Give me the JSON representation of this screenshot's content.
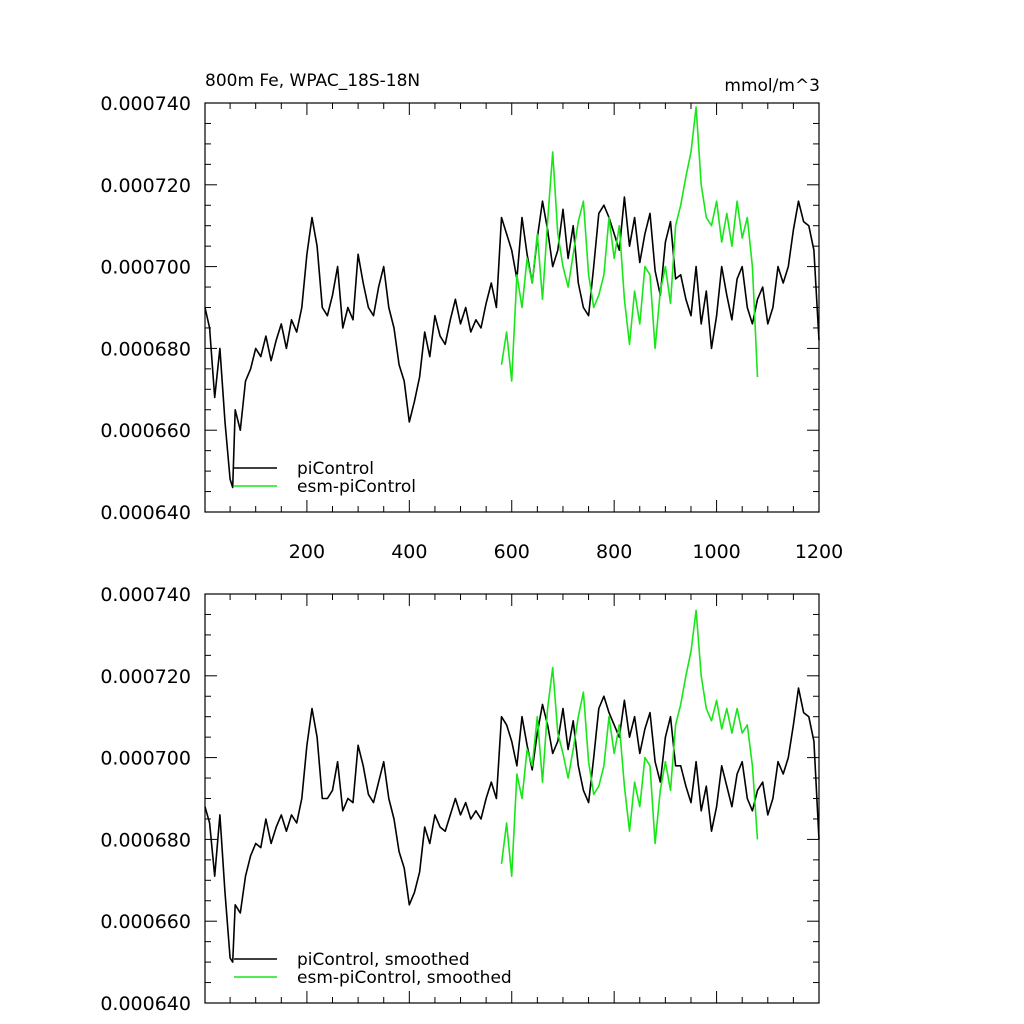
{
  "colors": {
    "piControl": "#000000",
    "esm_piControl": "#19e619",
    "frame": "#000000"
  },
  "chart_data": [
    {
      "type": "line",
      "title": "800m Fe, WPAC_18S-18N",
      "units": "mmol/m^3",
      "xlim": [
        1,
        1200
      ],
      "ylim": [
        0.00064,
        0.00074
      ],
      "yticks": [
        "0.000640",
        "0.000660",
        "0.000680",
        "0.000700",
        "0.000720",
        "0.000740"
      ],
      "xticks": [
        "200",
        "400",
        "600",
        "800",
        "1000",
        "1200"
      ],
      "legend": [
        "piControl",
        "esm-piControl"
      ],
      "legend_position": "bottom-left",
      "series": [
        {
          "name": "piControl",
          "color": "#000000",
          "x": [
            1,
            10,
            20,
            30,
            40,
            50,
            55,
            60,
            70,
            80,
            90,
            100,
            110,
            120,
            130,
            140,
            150,
            160,
            170,
            180,
            190,
            200,
            210,
            220,
            230,
            240,
            250,
            260,
            270,
            280,
            290,
            300,
            310,
            320,
            330,
            340,
            350,
            360,
            370,
            380,
            390,
            400,
            410,
            420,
            430,
            440,
            450,
            460,
            470,
            480,
            490,
            500,
            510,
            520,
            530,
            540,
            550,
            560,
            570,
            580,
            590,
            600,
            610,
            620,
            630,
            640,
            650,
            660,
            670,
            680,
            690,
            700,
            710,
            720,
            730,
            740,
            750,
            760,
            770,
            780,
            790,
            800,
            810,
            820,
            830,
            840,
            850,
            860,
            870,
            880,
            890,
            900,
            910,
            920,
            930,
            940,
            950,
            960,
            970,
            980,
            990,
            1000,
            1010,
            1020,
            1030,
            1040,
            1050,
            1060,
            1070,
            1080,
            1090,
            1100,
            1110,
            1120,
            1130,
            1140,
            1150,
            1160,
            1170,
            1180,
            1190,
            1200
          ],
          "y": [
            0.00069,
            0.000685,
            0.000668,
            0.00068,
            0.000662,
            0.000648,
            0.000646,
            0.000665,
            0.00066,
            0.000672,
            0.000675,
            0.00068,
            0.000678,
            0.000683,
            0.000677,
            0.000682,
            0.000686,
            0.00068,
            0.000687,
            0.000684,
            0.00069,
            0.000703,
            0.000712,
            0.000705,
            0.00069,
            0.000688,
            0.000693,
            0.0007,
            0.000685,
            0.00069,
            0.000687,
            0.000703,
            0.000696,
            0.00069,
            0.000688,
            0.000695,
            0.0007,
            0.00069,
            0.000685,
            0.000676,
            0.000672,
            0.000662,
            0.000667,
            0.000673,
            0.000684,
            0.000678,
            0.000688,
            0.000683,
            0.000681,
            0.000687,
            0.000692,
            0.000686,
            0.00069,
            0.000684,
            0.000687,
            0.000685,
            0.000691,
            0.000696,
            0.00069,
            0.000712,
            0.000708,
            0.000704,
            0.000697,
            0.000712,
            0.000703,
            0.000696,
            0.000707,
            0.000716,
            0.000709,
            0.0007,
            0.000704,
            0.000714,
            0.000702,
            0.00071,
            0.000696,
            0.00069,
            0.000688,
            0.0007,
            0.000713,
            0.000715,
            0.000712,
            0.000708,
            0.000704,
            0.000717,
            0.000705,
            0.000712,
            0.000701,
            0.000708,
            0.000713,
            0.000699,
            0.000693,
            0.000706,
            0.000711,
            0.000697,
            0.000698,
            0.000692,
            0.000688,
            0.0007,
            0.000686,
            0.000694,
            0.00068,
            0.000688,
            0.0007,
            0.000693,
            0.000687,
            0.000697,
            0.0007,
            0.00069,
            0.000686,
            0.000692,
            0.000695,
            0.000686,
            0.00069,
            0.0007,
            0.000696,
            0.0007,
            0.000709,
            0.000716,
            0.000711,
            0.00071,
            0.000704,
            0.000682
          ]
        },
        {
          "name": "esm-piControl",
          "color": "#19e619",
          "x": [
            580,
            590,
            600,
            610,
            620,
            630,
            640,
            650,
            660,
            670,
            680,
            690,
            700,
            710,
            720,
            730,
            740,
            750,
            760,
            770,
            780,
            790,
            800,
            810,
            820,
            830,
            840,
            850,
            860,
            870,
            880,
            890,
            900,
            910,
            920,
            930,
            940,
            950,
            960,
            970,
            980,
            990,
            1000,
            1010,
            1020,
            1030,
            1040,
            1050,
            1060,
            1070,
            1080
          ],
          "y": [
            0.000676,
            0.000684,
            0.000672,
            0.000698,
            0.00069,
            0.000702,
            0.000696,
            0.000708,
            0.000692,
            0.000711,
            0.000728,
            0.000708,
            0.0007,
            0.000695,
            0.000703,
            0.000711,
            0.000716,
            0.000698,
            0.00069,
            0.000693,
            0.000698,
            0.000712,
            0.000702,
            0.00071,
            0.000692,
            0.000681,
            0.000694,
            0.000686,
            0.0007,
            0.000698,
            0.00068,
            0.000694,
            0.0007,
            0.000691,
            0.00071,
            0.000715,
            0.000722,
            0.000728,
            0.000739,
            0.00072,
            0.000712,
            0.00071,
            0.000716,
            0.000706,
            0.000713,
            0.000705,
            0.000716,
            0.000707,
            0.000712,
            0.0007,
            0.000673
          ]
        }
      ]
    },
    {
      "type": "line",
      "title": "",
      "xlim": [
        1,
        1200
      ],
      "ylim": [
        0.00064,
        0.00074
      ],
      "yticks": [
        "0.000640",
        "0.000660",
        "0.000680",
        "0.000700",
        "0.000720",
        "0.000740"
      ],
      "legend": [
        "piControl, smoothed",
        "esm-piControl, smoothed"
      ],
      "legend_position": "bottom-left",
      "series": [
        {
          "name": "piControl, smoothed",
          "color": "#000000",
          "x": [
            1,
            10,
            20,
            30,
            40,
            50,
            55,
            60,
            70,
            80,
            90,
            100,
            110,
            120,
            130,
            140,
            150,
            160,
            170,
            180,
            190,
            200,
            210,
            220,
            230,
            240,
            250,
            260,
            270,
            280,
            290,
            300,
            310,
            320,
            330,
            340,
            350,
            360,
            370,
            380,
            390,
            400,
            410,
            420,
            430,
            440,
            450,
            460,
            470,
            480,
            490,
            500,
            510,
            520,
            530,
            540,
            550,
            560,
            570,
            580,
            590,
            600,
            610,
            620,
            630,
            640,
            650,
            660,
            670,
            680,
            690,
            700,
            710,
            720,
            730,
            740,
            750,
            760,
            770,
            780,
            790,
            800,
            810,
            820,
            830,
            840,
            850,
            860,
            870,
            880,
            890,
            900,
            910,
            920,
            930,
            940,
            950,
            960,
            970,
            980,
            990,
            1000,
            1010,
            1020,
            1030,
            1040,
            1050,
            1060,
            1070,
            1080,
            1090,
            1100,
            1110,
            1120,
            1130,
            1140,
            1150,
            1160,
            1170,
            1180,
            1190,
            1200
          ],
          "y": [
            0.000688,
            0.000684,
            0.000671,
            0.000686,
            0.000667,
            0.000651,
            0.00065,
            0.000664,
            0.000662,
            0.000671,
            0.000676,
            0.000679,
            0.000678,
            0.000685,
            0.000679,
            0.000683,
            0.000686,
            0.000682,
            0.000686,
            0.000684,
            0.00069,
            0.000703,
            0.000712,
            0.000705,
            0.00069,
            0.00069,
            0.000692,
            0.000699,
            0.000687,
            0.00069,
            0.000689,
            0.000703,
            0.000698,
            0.000691,
            0.000689,
            0.000694,
            0.000699,
            0.00069,
            0.000685,
            0.000677,
            0.000673,
            0.000664,
            0.000667,
            0.000672,
            0.000683,
            0.000679,
            0.000686,
            0.000683,
            0.000682,
            0.000686,
            0.00069,
            0.000686,
            0.000689,
            0.000685,
            0.000687,
            0.000685,
            0.00069,
            0.000694,
            0.00069,
            0.00071,
            0.000708,
            0.000704,
            0.000698,
            0.00071,
            0.000703,
            0.000697,
            0.000706,
            0.000713,
            0.000708,
            0.000701,
            0.000704,
            0.000712,
            0.000702,
            0.000709,
            0.000698,
            0.000692,
            0.000689,
            0.0007,
            0.000712,
            0.000715,
            0.000711,
            0.000708,
            0.000705,
            0.000714,
            0.000705,
            0.00071,
            0.000701,
            0.000707,
            0.000711,
            0.000699,
            0.000694,
            0.000705,
            0.00071,
            0.000698,
            0.000698,
            0.000693,
            0.000689,
            0.000699,
            0.000687,
            0.000693,
            0.000682,
            0.000688,
            0.000698,
            0.000693,
            0.000688,
            0.000696,
            0.000699,
            0.00069,
            0.000687,
            0.000692,
            0.000694,
            0.000686,
            0.00069,
            0.000699,
            0.000696,
            0.0007,
            0.000708,
            0.000717,
            0.000711,
            0.00071,
            0.000704,
            0.00068
          ]
        },
        {
          "name": "esm-piControl, smoothed",
          "color": "#19e619",
          "x": [
            580,
            590,
            600,
            610,
            620,
            630,
            640,
            650,
            660,
            670,
            680,
            690,
            700,
            710,
            720,
            730,
            740,
            750,
            760,
            770,
            780,
            790,
            800,
            810,
            820,
            830,
            840,
            850,
            860,
            870,
            880,
            890,
            900,
            910,
            920,
            930,
            940,
            950,
            960,
            970,
            980,
            990,
            1000,
            1010,
            1020,
            1030,
            1040,
            1050,
            1060,
            1070,
            1080
          ],
          "y": [
            0.000674,
            0.000684,
            0.000671,
            0.000696,
            0.00069,
            0.000702,
            0.000698,
            0.00071,
            0.000694,
            0.000712,
            0.000722,
            0.000706,
            0.000701,
            0.000695,
            0.000702,
            0.00071,
            0.000716,
            0.000699,
            0.000691,
            0.000693,
            0.000698,
            0.00071,
            0.000701,
            0.000708,
            0.000693,
            0.000682,
            0.000694,
            0.000688,
            0.0007,
            0.000698,
            0.000679,
            0.000692,
            0.000699,
            0.000692,
            0.000708,
            0.000713,
            0.00072,
            0.000726,
            0.000736,
            0.00072,
            0.000712,
            0.000709,
            0.000714,
            0.000707,
            0.000712,
            0.000706,
            0.000712,
            0.000706,
            0.000708,
            0.000698,
            0.00068
          ]
        }
      ]
    }
  ]
}
